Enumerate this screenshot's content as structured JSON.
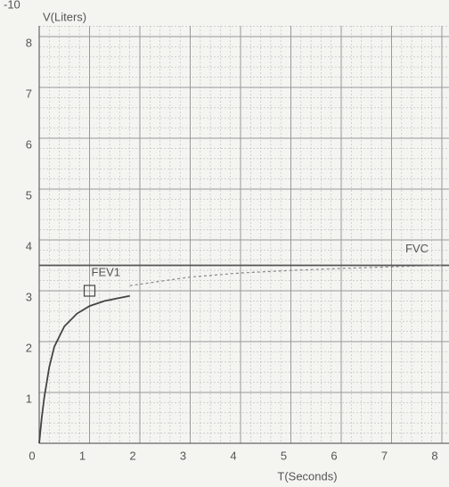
{
  "chart_data": {
    "type": "line",
    "top_text": "-10",
    "ylabel": "V(Liters)",
    "xlabel": "T(Seconds)",
    "xlim": [
      0,
      8
    ],
    "ylim": [
      0,
      8
    ],
    "xticks": [
      0,
      1,
      2,
      3,
      4,
      5,
      6,
      7,
      8
    ],
    "yticks": [
      1,
      2,
      3,
      4,
      5,
      6,
      7,
      8
    ],
    "grid": true,
    "series": [
      {
        "color": "#444444",
        "style": "solid",
        "x": [
          0,
          0.05,
          0.1,
          0.2,
          0.3,
          0.5,
          0.75,
          1,
          1.3,
          1.8
        ],
        "values": [
          0,
          0.5,
          0.9,
          1.5,
          1.9,
          2.3,
          2.55,
          2.7,
          2.8,
          2.9
        ]
      },
      {
        "color": "#888888",
        "style": "dotted",
        "x": [
          1.8,
          2.5,
          3,
          4,
          5,
          6,
          7,
          8
        ],
        "values": [
          3.1,
          3.2,
          3.27,
          3.35,
          3.4,
          3.44,
          3.47,
          3.5
        ]
      }
    ],
    "fvc": {
      "text": "FVC",
      "value": 3.5
    },
    "fev1": {
      "text": "FEV1",
      "x": 1,
      "y": 3.0
    }
  }
}
